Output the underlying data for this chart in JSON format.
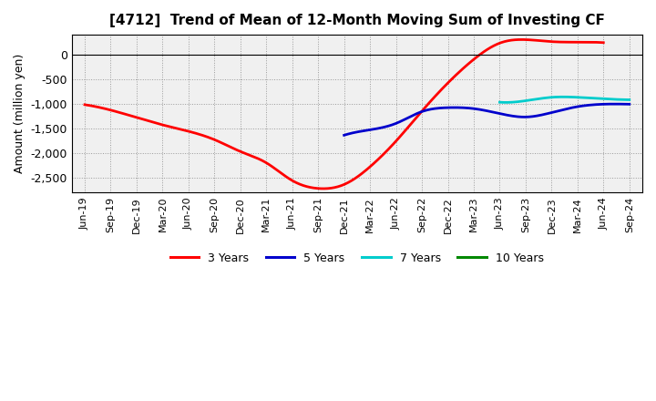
{
  "title": "[4712]  Trend of Mean of 12-Month Moving Sum of Investing CF",
  "ylabel": "Amount (million yen)",
  "ylim": [
    -2800,
    400
  ],
  "yticks": [
    -2500,
    -2000,
    -1500,
    -1000,
    -500,
    0
  ],
  "background_color": "#ffffff",
  "plot_bg_color": "#f0f0f0",
  "grid_color": "#999999",
  "x_labels": [
    "Jun-19",
    "Sep-19",
    "Dec-19",
    "Mar-20",
    "Jun-20",
    "Sep-20",
    "Dec-20",
    "Mar-21",
    "Jun-21",
    "Sep-21",
    "Dec-21",
    "Mar-22",
    "Jun-22",
    "Sep-22",
    "Dec-22",
    "Mar-23",
    "Jun-23",
    "Sep-23",
    "Dec-23",
    "Mar-24",
    "Jun-24",
    "Sep-24"
  ],
  "series": {
    "3 Years": {
      "color": "#ff0000",
      "data_x": [
        0,
        1,
        2,
        3,
        4,
        5,
        6,
        7,
        8,
        9,
        10,
        11,
        12,
        13,
        14,
        15,
        16,
        17,
        18,
        19,
        20
      ],
      "data_y": [
        -1020,
        -1130,
        -1280,
        -1430,
        -1560,
        -1730,
        -1970,
        -2200,
        -2560,
        -2720,
        -2640,
        -2280,
        -1760,
        -1150,
        -580,
        -100,
        230,
        300,
        260,
        250,
        240
      ]
    },
    "5 Years": {
      "color": "#0000cc",
      "data_x": [
        10,
        11,
        12,
        13,
        14,
        15,
        16,
        17,
        18,
        19,
        20,
        21
      ],
      "data_y": [
        -1640,
        -1530,
        -1400,
        -1160,
        -1080,
        -1100,
        -1200,
        -1270,
        -1180,
        -1060,
        -1010,
        -1010
      ]
    },
    "7 Years": {
      "color": "#00cccc",
      "data_x": [
        16,
        17,
        18,
        19,
        20,
        21
      ],
      "data_y": [
        -970,
        -940,
        -870,
        -870,
        -900,
        -920
      ]
    },
    "10 Years": {
      "color": "#008800",
      "data_x": [],
      "data_y": []
    }
  },
  "legend_entries": [
    "3 Years",
    "5 Years",
    "7 Years",
    "10 Years"
  ],
  "legend_colors": [
    "#ff0000",
    "#0000cc",
    "#00cccc",
    "#008800"
  ]
}
